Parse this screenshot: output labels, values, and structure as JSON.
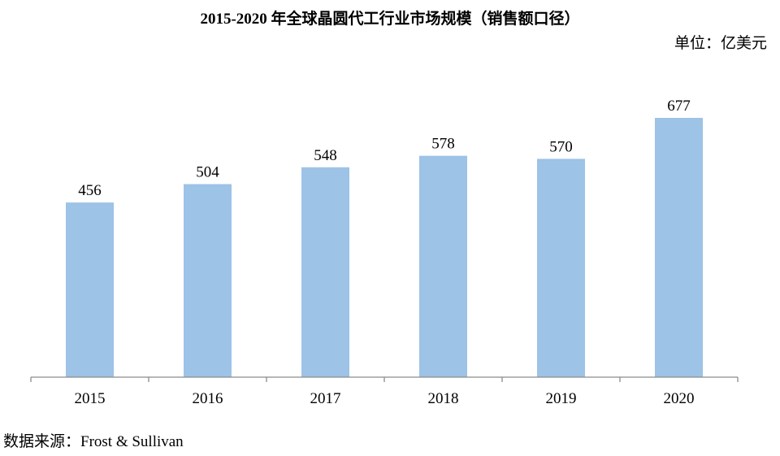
{
  "header": {
    "title": "2015-2020 年全球晶圆代工行业市场规模（销售额口径）",
    "unit": "单位：亿美元"
  },
  "footer": {
    "source": "数据来源：Frost & Sullivan"
  },
  "colors": {
    "bar": "#9dc3e6",
    "axis": "#8c8c8c"
  },
  "chart_data": {
    "type": "bar",
    "title": "2015-2020 年全球晶圆代工行业市场规模（销售额口径）",
    "unit": "单位：亿美元",
    "categories": [
      "2015",
      "2016",
      "2017",
      "2018",
      "2019",
      "2020"
    ],
    "values": [
      456,
      504,
      548,
      578,
      570,
      677
    ],
    "data_labels": [
      "456",
      "504",
      "548",
      "578",
      "570",
      "677"
    ],
    "xlabel": "",
    "ylabel": "",
    "ylim": [
      0,
      700
    ],
    "grid": false,
    "legend": "none"
  }
}
